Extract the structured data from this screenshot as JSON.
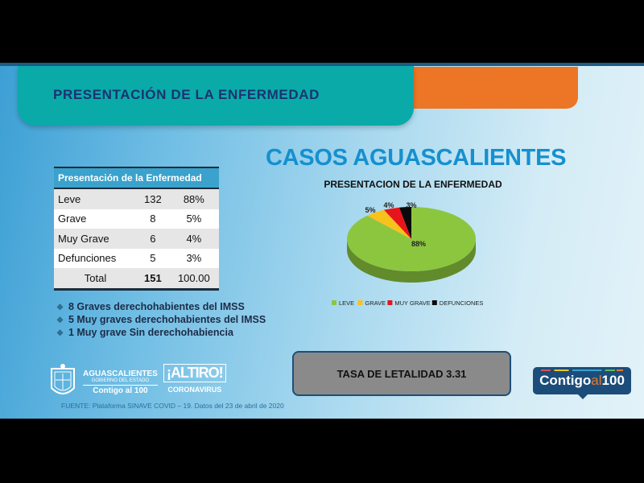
{
  "header": {
    "title": "PRESENTACIÓN DE LA ENFERMEDAD"
  },
  "heading": "CASOS AGUASCALIENTES",
  "table": {
    "header": "Presentación de la Enfermedad",
    "rows": [
      {
        "label": "Leve",
        "count": "132",
        "pct": "88%"
      },
      {
        "label": "Grave",
        "count": "8",
        "pct": "5%"
      },
      {
        "label": "Muy Grave",
        "count": "6",
        "pct": "4%"
      },
      {
        "label": "Defunciones",
        "count": "5",
        "pct": "3%"
      }
    ],
    "total": {
      "label": "Total",
      "count": "151",
      "pct": "100.00"
    }
  },
  "bullets": [
    "8 Graves derechohabientes del IMSS",
    "5 Muy graves derechohabientes del IMSS",
    "1 Muy grave Sin derechohabiencia"
  ],
  "tasa": "TASA DE LETALIDAD 3.31",
  "fuente": "FUENTE: Plataforma SINAVE COVID – 19. Datos del 23 de abril de 2020",
  "logos": {
    "state": {
      "name": "AGUASCALIENTES",
      "sub": "GOBIERNO DEL ESTADO",
      "slogan": "Contigo al 100"
    },
    "altiro": {
      "main": "¡ALTIRO!",
      "sub": "CORONAVIRUS"
    },
    "contigo": {
      "a": "Contigo",
      "b": "al",
      "c": "100"
    }
  },
  "chart_data": {
    "type": "pie",
    "title": "PRESENTACION DE LA ENFERMEDAD",
    "categories": [
      "LEVE",
      "GRAVE",
      "MUY GRAVE",
      "DEFUNCIONES"
    ],
    "values": [
      88,
      5,
      4,
      3
    ],
    "labels": [
      "88%",
      "5%",
      "4%",
      "3%"
    ],
    "colors": [
      "#8cc63f",
      "#f7c21b",
      "#e8141c",
      "#0a0a0a"
    ],
    "legend": "bottom",
    "style": "3d"
  }
}
